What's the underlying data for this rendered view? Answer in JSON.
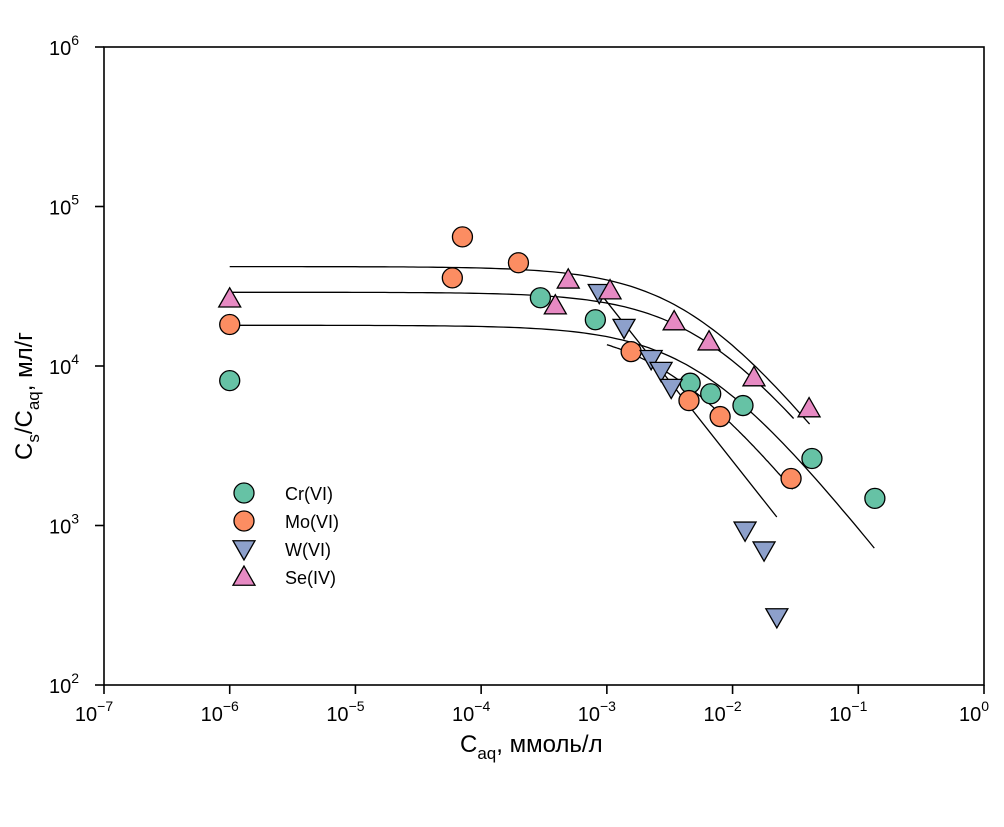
{
  "chart_data": {
    "type": "scatter",
    "title": "",
    "xlabel": {
      "main": "C",
      "sub": "aq",
      "rest": ", ммоль/л"
    },
    "ylabel": {
      "p1": "C",
      "s1": "s",
      "p2": "/C",
      "s2": "aq",
      "p3": ", мл/г"
    },
    "xscale": "log",
    "yscale": "log",
    "xlim": [
      1e-07,
      1
    ],
    "ylim": [
      100,
      1000000
    ],
    "grid": false,
    "legend_position": "lower-left",
    "x_ticks": [
      {
        "value": 1e-07,
        "base": "10",
        "exp": "−7"
      },
      {
        "value": 1e-06,
        "base": "10",
        "exp": "−6"
      },
      {
        "value": 1e-05,
        "base": "10",
        "exp": "−5"
      },
      {
        "value": 0.0001,
        "base": "10",
        "exp": "−4"
      },
      {
        "value": 0.001,
        "base": "10",
        "exp": "−3"
      },
      {
        "value": 0.01,
        "base": "10",
        "exp": "−2"
      },
      {
        "value": 0.1,
        "base": "10",
        "exp": "−1"
      },
      {
        "value": 1,
        "base": "10",
        "exp": "0"
      }
    ],
    "y_ticks": [
      {
        "value": 100,
        "base": "10",
        "exp": "2"
      },
      {
        "value": 1000,
        "base": "10",
        "exp": "3"
      },
      {
        "value": 10000,
        "base": "10",
        "exp": "4"
      },
      {
        "value": 100000,
        "base": "10",
        "exp": "5"
      },
      {
        "value": 1000000,
        "base": "10",
        "exp": "6"
      }
    ],
    "series": [
      {
        "name": "Cr(VI)",
        "marker": "circle",
        "color": "#66c2a5",
        "points": [
          [
            1e-06,
            8100
          ],
          [
            0.000296,
            26800
          ],
          [
            0.00081,
            19500
          ],
          [
            0.0046,
            7800
          ],
          [
            0.0067,
            6700
          ],
          [
            0.0121,
            5650
          ],
          [
            0.0428,
            2630
          ],
          [
            0.1355,
            1480
          ]
        ]
      },
      {
        "name": "Mo(VI)",
        "marker": "circle",
        "color": "#fc8d62",
        "points": [
          [
            1e-06,
            18200
          ],
          [
            5.9e-05,
            35700
          ],
          [
            7.1e-05,
            64500
          ],
          [
            0.000198,
            44400
          ],
          [
            0.00156,
            12300
          ],
          [
            0.0045,
            6070
          ],
          [
            0.00796,
            4820
          ],
          [
            0.0292,
            1970
          ]
        ]
      },
      {
        "name": "W(VI)",
        "marker": "triangle-down",
        "color": "#8da0cb",
        "points": [
          [
            0.00087,
            28800
          ],
          [
            0.00137,
            17400
          ],
          [
            0.00225,
            11100
          ],
          [
            0.0027,
            9350
          ],
          [
            0.00325,
            7320
          ],
          [
            0.01257,
            933
          ],
          [
            0.0178,
            700
          ],
          [
            0.0225,
            267
          ]
        ]
      },
      {
        "name": "Se(IV)",
        "marker": "triangle-up",
        "color": "#e78ac3",
        "points": [
          [
            1e-06,
            26400
          ],
          [
            0.000389,
            23900
          ],
          [
            0.000493,
            34700
          ],
          [
            0.00106,
            29700
          ],
          [
            0.00343,
            19000
          ],
          [
            0.0065,
            14200
          ],
          [
            0.0148,
            8460
          ],
          [
            0.0406,
            5410
          ]
        ]
      }
    ],
    "fit_curves": [
      {
        "name": "fit-upper",
        "model": "langmuir",
        "a": 42000,
        "b": 0.0047,
        "x_range": [
          1e-06,
          0.041
        ]
      },
      {
        "name": "fit-middle",
        "model": "langmuir",
        "a": 29000,
        "b": 0.0059,
        "x_range": [
          1e-06,
          0.0306
        ]
      },
      {
        "name": "fit-lower",
        "model": "langmuir",
        "a": 18000,
        "b": 0.0056,
        "x_range": [
          1e-06,
          0.134
        ]
      },
      {
        "name": "fit-mo",
        "model": "langmuir",
        "a": 18000,
        "b": 0.0031,
        "x_range": [
          0.001,
          0.03
        ]
      },
      {
        "name": "fit-w",
        "model": "line",
        "points": [
          [
            0.00087,
            29000
          ],
          [
            0.0225,
            1130
          ]
        ]
      }
    ]
  }
}
